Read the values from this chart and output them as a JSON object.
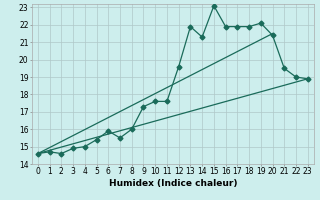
{
  "title": "",
  "xlabel": "Humidex (Indice chaleur)",
  "ylabel": "",
  "bg_color": "#cdeeed",
  "line_color": "#1a6b5a",
  "grid_color": "#b0c8c8",
  "xlim": [
    -0.5,
    23.5
  ],
  "ylim": [
    14,
    23.2
  ],
  "xticks": [
    0,
    1,
    2,
    3,
    4,
    5,
    6,
    7,
    8,
    9,
    10,
    11,
    12,
    13,
    14,
    15,
    16,
    17,
    18,
    19,
    20,
    21,
    22,
    23
  ],
  "yticks": [
    14,
    15,
    16,
    17,
    18,
    19,
    20,
    21,
    22,
    23
  ],
  "data_x": [
    0,
    1,
    2,
    3,
    4,
    5,
    6,
    7,
    8,
    9,
    10,
    11,
    12,
    13,
    14,
    15,
    16,
    17,
    18,
    19,
    20,
    21,
    22,
    23
  ],
  "data_y": [
    14.6,
    14.7,
    14.6,
    14.9,
    15.0,
    15.4,
    15.9,
    15.5,
    16.0,
    17.3,
    17.6,
    17.6,
    19.6,
    21.9,
    21.3,
    23.1,
    21.9,
    21.9,
    21.9,
    22.1,
    21.4,
    19.5,
    19.0,
    18.9
  ],
  "trend1_x": [
    0,
    20
  ],
  "trend1_y": [
    14.6,
    21.5
  ],
  "trend2_x": [
    0,
    23
  ],
  "trend2_y": [
    14.6,
    18.9
  ],
  "marker_size": 2.5,
  "linewidth": 0.9,
  "xlabel_fontsize": 6.5,
  "tick_fontsize": 5.5
}
